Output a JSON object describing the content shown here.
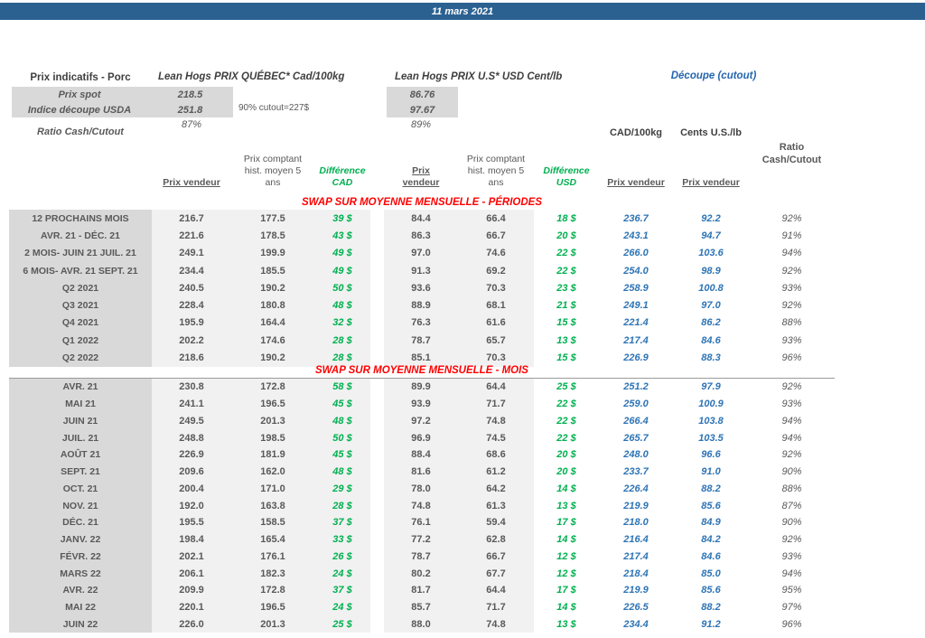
{
  "header": {
    "date": "11 mars 2021"
  },
  "summary": {
    "title": "Prix indicatifs - Porc",
    "quebec_header": "Lean Hogs PRIX QUÉBEC* Cad/100kg",
    "us_header": "Lean Hogs PRIX U.S* USD Cent/lb",
    "cutout_header": "Découpe (cutout)",
    "spot_label": "Prix spot",
    "spot_cad": "218.5",
    "spot_usd": "86.76",
    "index_label": "Indice découpe USDA",
    "index_cad": "251.8",
    "index_usd": "97.67",
    "cutout_note": "90% cutout=227$",
    "ratio_label": "Ratio Cash/Cutout",
    "ratio_cad": "87%",
    "ratio_usd": "89%"
  },
  "columns": {
    "cad_unit": "CAD/100kg",
    "us_unit": "Cents U.S./lb",
    "prix_vendeur": "Prix vendeur",
    "prix_word": "Prix",
    "vendeur_word": "vendeur",
    "prix_comptant_1": "Prix comptant",
    "prix_comptant_2": "hist. moyen 5",
    "prix_comptant_3": "ans",
    "difference_word": "Différence",
    "cad_word": "CAD",
    "usd_word": "USD",
    "ratio_1": "Ratio",
    "ratio_2": "Cash/Cutout"
  },
  "colors": {
    "banner_blue": "#2B6191",
    "cutout_blue": "#2E74B5",
    "heading_blue": "#2565AE",
    "diff_green": "#00B050",
    "section_red": "#FF0000",
    "label_bg": "#D9D9D9",
    "band_bg": "#F1F1F1",
    "text_gray": "#595959"
  },
  "sections": [
    {
      "title": "SWAP SUR MOYENNE MENSUELLE - PÉRIODES",
      "rows": [
        {
          "label": "12 PROCHAINS MOIS",
          "pv_cad": "216.7",
          "pc_cad": "177.5",
          "diff_cad": "39 $",
          "pv_usd": "84.4",
          "pc_usd": "66.4",
          "diff_usd": "18 $",
          "cut_cad": "236.7",
          "cut_usd": "92.2",
          "ratio": "92%"
        },
        {
          "label": "AVR. 21 -  DÉC. 21",
          "pv_cad": "221.6",
          "pc_cad": "178.5",
          "diff_cad": "43 $",
          "pv_usd": "86.3",
          "pc_usd": "66.7",
          "diff_usd": "20 $",
          "cut_cad": "243.1",
          "cut_usd": "94.7",
          "ratio": "91%"
        },
        {
          "label": "2 MOIS- JUIN 21 JUIL. 21",
          "pv_cad": "249.1",
          "pc_cad": "199.9",
          "diff_cad": "49 $",
          "pv_usd": "97.0",
          "pc_usd": "74.6",
          "diff_usd": "22 $",
          "cut_cad": "266.0",
          "cut_usd": "103.6",
          "ratio": "94%"
        },
        {
          "label": "6 MOIS- AVR. 21 SEPT. 21",
          "pv_cad": "234.4",
          "pc_cad": "185.5",
          "diff_cad": "49 $",
          "pv_usd": "91.3",
          "pc_usd": "69.2",
          "diff_usd": "22 $",
          "cut_cad": "254.0",
          "cut_usd": "98.9",
          "ratio": "92%"
        },
        {
          "label": "Q2 2021",
          "pv_cad": "240.5",
          "pc_cad": "190.2",
          "diff_cad": "50 $",
          "pv_usd": "93.6",
          "pc_usd": "70.3",
          "diff_usd": "23 $",
          "cut_cad": "258.9",
          "cut_usd": "100.8",
          "ratio": "93%"
        },
        {
          "label": "Q3 2021",
          "pv_cad": "228.4",
          "pc_cad": "180.8",
          "diff_cad": "48 $",
          "pv_usd": "88.9",
          "pc_usd": "68.1",
          "diff_usd": "21 $",
          "cut_cad": "249.1",
          "cut_usd": "97.0",
          "ratio": "92%"
        },
        {
          "label": "Q4 2021",
          "pv_cad": "195.9",
          "pc_cad": "164.4",
          "diff_cad": "32 $",
          "pv_usd": "76.3",
          "pc_usd": "61.6",
          "diff_usd": "15 $",
          "cut_cad": "221.4",
          "cut_usd": "86.2",
          "ratio": "88%"
        },
        {
          "label": "Q1 2022",
          "pv_cad": "202.2",
          "pc_cad": "174.6",
          "diff_cad": "28 $",
          "pv_usd": "78.7",
          "pc_usd": "65.7",
          "diff_usd": "13 $",
          "cut_cad": "217.4",
          "cut_usd": "84.6",
          "ratio": "93%"
        },
        {
          "label": "Q2 2022",
          "pv_cad": "218.6",
          "pc_cad": "190.2",
          "diff_cad": "28 $",
          "pv_usd": "85.1",
          "pc_usd": "70.3",
          "diff_usd": "15 $",
          "cut_cad": "226.9",
          "cut_usd": "88.3",
          "ratio": "96%"
        }
      ]
    },
    {
      "title": "SWAP SUR MOYENNE MENSUELLE - MOIS",
      "rows": [
        {
          "label": "AVR. 21",
          "pv_cad": "230.8",
          "pc_cad": "172.8",
          "diff_cad": "58 $",
          "pv_usd": "89.9",
          "pc_usd": "64.4",
          "diff_usd": "25 $",
          "cut_cad": "251.2",
          "cut_usd": "97.9",
          "ratio": "92%"
        },
        {
          "label": "MAI 21",
          "pv_cad": "241.1",
          "pc_cad": "196.5",
          "diff_cad": "45 $",
          "pv_usd": "93.9",
          "pc_usd": "71.7",
          "diff_usd": "22 $",
          "cut_cad": "259.0",
          "cut_usd": "100.9",
          "ratio": "93%"
        },
        {
          "label": "JUIN 21",
          "pv_cad": "249.5",
          "pc_cad": "201.3",
          "diff_cad": "48 $",
          "pv_usd": "97.2",
          "pc_usd": "74.8",
          "diff_usd": "22 $",
          "cut_cad": "266.4",
          "cut_usd": "103.8",
          "ratio": "94%"
        },
        {
          "label": "JUIL. 21",
          "pv_cad": "248.8",
          "pc_cad": "198.5",
          "diff_cad": "50 $",
          "pv_usd": "96.9",
          "pc_usd": "74.5",
          "diff_usd": "22 $",
          "cut_cad": "265.7",
          "cut_usd": "103.5",
          "ratio": "94%"
        },
        {
          "label": "AOÛT 21",
          "pv_cad": "226.9",
          "pc_cad": "181.9",
          "diff_cad": "45 $",
          "pv_usd": "88.4",
          "pc_usd": "68.6",
          "diff_usd": "20 $",
          "cut_cad": "248.0",
          "cut_usd": "96.6",
          "ratio": "92%"
        },
        {
          "label": "SEPT. 21",
          "pv_cad": "209.6",
          "pc_cad": "162.0",
          "diff_cad": "48 $",
          "pv_usd": "81.6",
          "pc_usd": "61.2",
          "diff_usd": "20 $",
          "cut_cad": "233.7",
          "cut_usd": "91.0",
          "ratio": "90%"
        },
        {
          "label": "OCT. 21",
          "pv_cad": "200.4",
          "pc_cad": "171.0",
          "diff_cad": "29 $",
          "pv_usd": "78.0",
          "pc_usd": "64.2",
          "diff_usd": "14 $",
          "cut_cad": "226.4",
          "cut_usd": "88.2",
          "ratio": "88%"
        },
        {
          "label": "NOV. 21",
          "pv_cad": "192.0",
          "pc_cad": "163.8",
          "diff_cad": "28 $",
          "pv_usd": "74.8",
          "pc_usd": "61.3",
          "diff_usd": "13 $",
          "cut_cad": "219.9",
          "cut_usd": "85.6",
          "ratio": "87%"
        },
        {
          "label": "DÉC. 21",
          "pv_cad": "195.5",
          "pc_cad": "158.5",
          "diff_cad": "37 $",
          "pv_usd": "76.1",
          "pc_usd": "59.4",
          "diff_usd": "17 $",
          "cut_cad": "218.0",
          "cut_usd": "84.9",
          "ratio": "90%"
        },
        {
          "label": "JANV. 22",
          "pv_cad": "198.4",
          "pc_cad": "165.4",
          "diff_cad": "33 $",
          "pv_usd": "77.2",
          "pc_usd": "62.8",
          "diff_usd": "14 $",
          "cut_cad": "216.4",
          "cut_usd": "84.2",
          "ratio": "92%"
        },
        {
          "label": "FÉVR. 22",
          "pv_cad": "202.1",
          "pc_cad": "176.1",
          "diff_cad": "26 $",
          "pv_usd": "78.7",
          "pc_usd": "66.7",
          "diff_usd": "12 $",
          "cut_cad": "217.4",
          "cut_usd": "84.6",
          "ratio": "93%"
        },
        {
          "label": "MARS 22",
          "pv_cad": "206.1",
          "pc_cad": "182.3",
          "diff_cad": "24 $",
          "pv_usd": "80.2",
          "pc_usd": "67.7",
          "diff_usd": "12 $",
          "cut_cad": "218.4",
          "cut_usd": "85.0",
          "ratio": "94%"
        },
        {
          "label": "AVR. 22",
          "pv_cad": "209.9",
          "pc_cad": "172.8",
          "diff_cad": "37 $",
          "pv_usd": "81.7",
          "pc_usd": "64.4",
          "diff_usd": "17 $",
          "cut_cad": "219.9",
          "cut_usd": "85.6",
          "ratio": "95%"
        },
        {
          "label": "MAI 22",
          "pv_cad": "220.1",
          "pc_cad": "196.5",
          "diff_cad": "24 $",
          "pv_usd": "85.7",
          "pc_usd": "71.7",
          "diff_usd": "14 $",
          "cut_cad": "226.5",
          "cut_usd": "88.2",
          "ratio": "97%"
        },
        {
          "label": "JUIN 22",
          "pv_cad": "226.0",
          "pc_cad": "201.3",
          "diff_cad": "25 $",
          "pv_usd": "88.0",
          "pc_usd": "74.8",
          "diff_usd": "13 $",
          "cut_cad": "234.4",
          "cut_usd": "91.2",
          "ratio": "96%"
        }
      ]
    }
  ]
}
